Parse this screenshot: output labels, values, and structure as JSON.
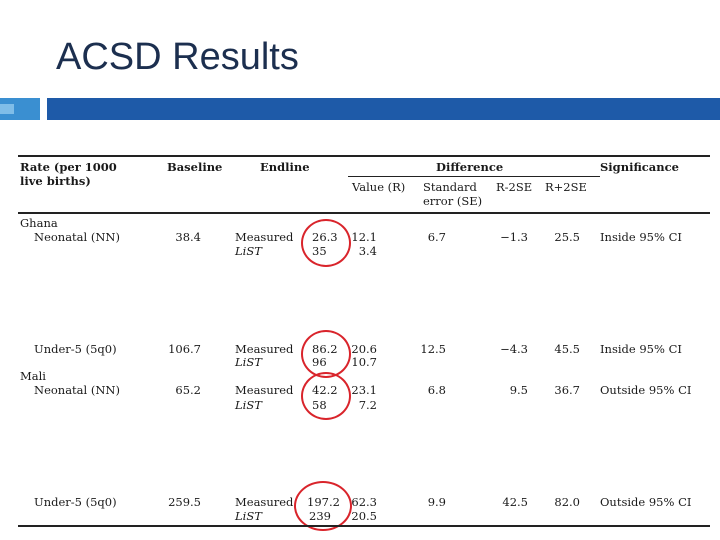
{
  "slide": {
    "title": "ACSD Results"
  },
  "table": {
    "headers": {
      "rate_line1": "Rate  (per 1000",
      "rate_line2": "live births)",
      "baseline": "Baseline",
      "endline": "Endline",
      "difference": "Difference",
      "significance": "Significance",
      "value": "Value (R)",
      "se_line1": "Standard",
      "se_line2": "error (SE)",
      "r_minus": "R-2SE",
      "r_plus": "R+2SE"
    },
    "groups": {
      "ghana": "Ghana",
      "mali": "Mali"
    },
    "rows": [
      {
        "label": "Neonatal (NN)",
        "baseline": "38.4",
        "m1": "Measured",
        "m2": "LiST",
        "e1": "26.3",
        "e2": "35",
        "v1": "12.1",
        "v2": "3.4",
        "se": "6.7",
        "rminus": "−1.3",
        "rplus": "25.5",
        "sig": "Inside 95% CI"
      },
      {
        "label": "Under-5 (5q0)",
        "baseline": "106.7",
        "m1": "Measured",
        "m2": "LiST",
        "e1": "86.2",
        "e2": "96",
        "v1": "20.6",
        "v2": "10.7",
        "se": "12.5",
        "rminus": "−4.3",
        "rplus": "45.5",
        "sig": "Inside 95% CI"
      },
      {
        "label": "Neonatal (NN)",
        "baseline": "65.2",
        "m1": "Measured",
        "m2": "LiST",
        "e1": "42.2",
        "e2": "58",
        "v1": "23.1",
        "v2": "7.2",
        "se": "6.8",
        "rminus": "9.5",
        "rplus": "36.7",
        "sig": "Outside 95% CI"
      },
      {
        "label": "Under-5 (5q0)",
        "baseline": "259.5",
        "m1": "Measured",
        "m2": "LiST",
        "e1": "197.2",
        "e2": "239",
        "v1": "62.3",
        "v2": "20.5",
        "se": "9.9",
        "rminus": "42.5",
        "rplus": "82.0",
        "sig": "Outside 95% CI"
      }
    ]
  },
  "colors": {
    "title": "#1c2f4f",
    "accent_bar": "#1e5aa8",
    "accent_bar_light": "#3a8fd1",
    "circle": "#d9242b"
  }
}
